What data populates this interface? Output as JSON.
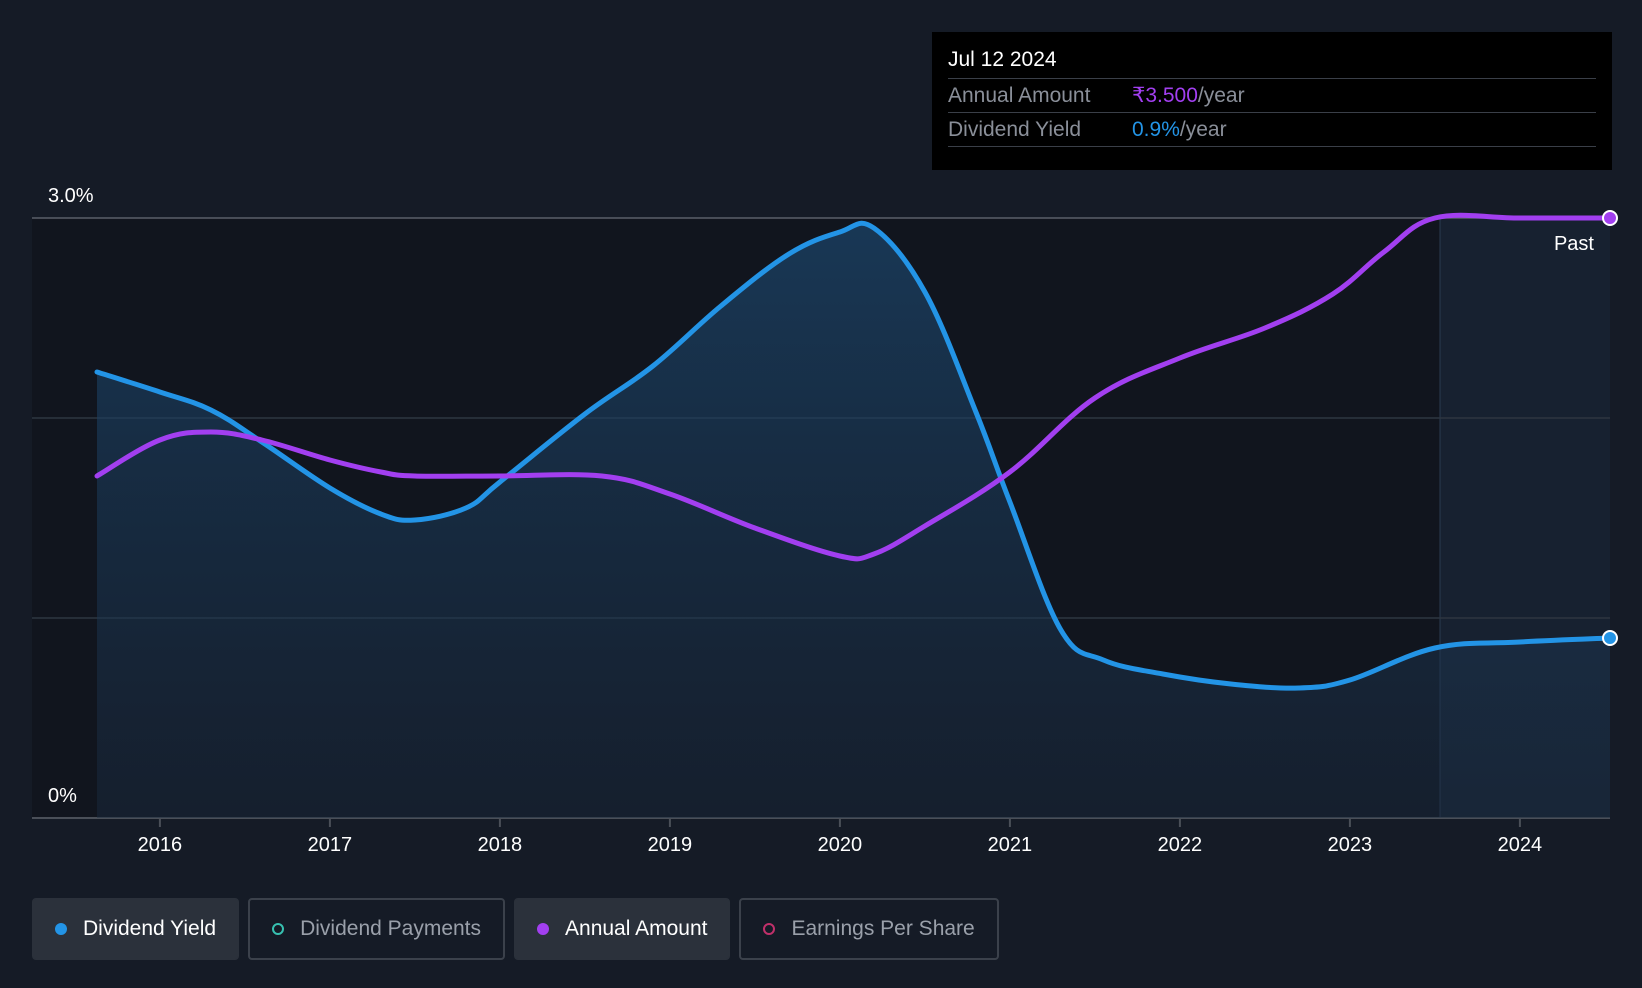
{
  "colors": {
    "background": "#151b26",
    "dividend_yield": "#2394e6",
    "annual_amount": "#a23ff0",
    "dividend_payments": "#37c0b0",
    "earnings_per_share": "#c0306a",
    "past_region": "#1d2c40"
  },
  "tooltip": {
    "date": "Jul 12 2024",
    "annual_amount_label": "Annual Amount",
    "annual_amount_value": "₹3.500",
    "annual_amount_unit": "/year",
    "dividend_yield_label": "Dividend Yield",
    "dividend_yield_value": "0.9%",
    "dividend_yield_unit": "/year"
  },
  "legend": [
    {
      "label": "Dividend Yield",
      "state": "active",
      "color": "#2394e6"
    },
    {
      "label": "Dividend Payments",
      "state": "inactive",
      "color": "#37c0b0"
    },
    {
      "label": "Annual Amount",
      "state": "active",
      "color": "#a23ff0"
    },
    {
      "label": "Earnings Per Share",
      "state": "inactive",
      "color": "#c0306a"
    }
  ],
  "chart_data": {
    "type": "line",
    "title": "",
    "xlabel": "",
    "ylabel": "",
    "y_tick_labels": [
      "3.0%",
      "0%"
    ],
    "x_tick_labels": [
      "2016",
      "2017",
      "2018",
      "2019",
      "2020",
      "2021",
      "2022",
      "2023",
      "2024"
    ],
    "xlim": [
      2015.63,
      2024.53
    ],
    "ylim": [
      0,
      3.0
    ],
    "gridlines": [
      0,
      1.0,
      2.0,
      3.0
    ],
    "past_label": "Past",
    "past_region_start": 2023.53,
    "series": [
      {
        "name": "Dividend Yield",
        "color": "#2394e6",
        "filled": true,
        "x": [
          2015.63,
          2016.0,
          2016.3,
          2016.6,
          2017.0,
          2017.3,
          2017.5,
          2017.8,
          2018.0,
          2018.5,
          2018.9,
          2019.3,
          2019.7,
          2020.0,
          2020.2,
          2020.5,
          2020.8,
          2021.0,
          2021.3,
          2021.55,
          2021.9,
          2022.3,
          2022.7,
          2023.0,
          2023.5,
          2024.0,
          2024.53
        ],
        "y": [
          2.23,
          2.13,
          2.04,
          1.88,
          1.65,
          1.52,
          1.49,
          1.55,
          1.68,
          2.02,
          2.26,
          2.56,
          2.82,
          2.93,
          2.95,
          2.63,
          2.03,
          1.58,
          0.94,
          0.79,
          0.72,
          0.67,
          0.65,
          0.69,
          0.85,
          0.88,
          0.9
        ]
      },
      {
        "name": "Annual Amount",
        "color": "#a23ff0",
        "filled": false,
        "x": [
          2015.63,
          2016.0,
          2016.3,
          2016.6,
          2017.0,
          2017.3,
          2017.5,
          2018.0,
          2018.6,
          2019.0,
          2019.5,
          2020.0,
          2020.2,
          2020.5,
          2021.0,
          2021.5,
          2022.0,
          2022.5,
          2022.9,
          2023.2,
          2023.5,
          2024.0,
          2024.53
        ],
        "y": [
          1.71,
          1.89,
          1.93,
          1.89,
          1.79,
          1.73,
          1.71,
          1.71,
          1.71,
          1.62,
          1.45,
          1.31,
          1.32,
          1.46,
          1.73,
          2.1,
          2.3,
          2.45,
          2.62,
          2.83,
          3.0,
          3.0,
          3.0
        ]
      }
    ]
  }
}
